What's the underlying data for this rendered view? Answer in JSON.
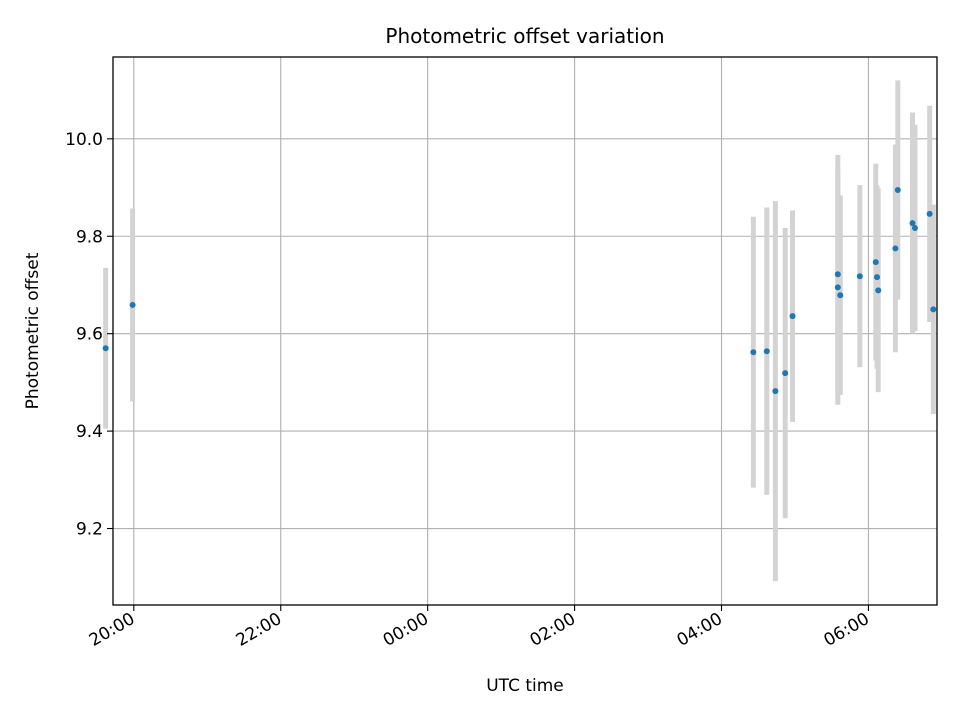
{
  "chart_data": {
    "type": "scatter",
    "title": "Photometric offset variation",
    "xlabel": "UTC time",
    "ylabel": "Photometric offset",
    "x_axis_type": "time",
    "x_reference_date": "",
    "xlim": [
      "19:43",
      "06:56"
    ],
    "ylim": [
      9.043,
      10.168
    ],
    "x_ticks": [
      "20:00",
      "22:00",
      "00:00",
      "02:00",
      "04:00",
      "06:00"
    ],
    "y_ticks": [
      9.2,
      9.4,
      9.6,
      9.8,
      10.0
    ],
    "y_tick_labels": [
      "9.2",
      "9.4",
      "9.6",
      "9.8",
      "10.0"
    ],
    "grid": true,
    "tick_label_rotation": "slanted",
    "point_color": "#1f77b4",
    "errorbar_color": "#d3d3d3",
    "series": [
      {
        "x": [
          "19:37",
          "19:59",
          "04:26",
          "04:37",
          "04:44",
          "04:52",
          "04:58",
          "05:35",
          "05:35",
          "05:37",
          "05:53",
          "06:06",
          "06:07",
          "06:08",
          "06:22",
          "06:24",
          "06:36",
          "06:38",
          "06:50",
          "06:53"
        ],
        "y": [
          9.57,
          9.659,
          9.562,
          9.564,
          9.482,
          9.519,
          9.636,
          9.722,
          9.695,
          9.679,
          9.718,
          9.747,
          9.716,
          9.689,
          9.775,
          9.895,
          9.827,
          9.817,
          9.846,
          9.65
        ],
        "yerr": [
          0.165,
          0.198,
          0.278,
          0.295,
          0.39,
          0.298,
          0.217,
          0.245,
          0.241,
          0.205,
          0.187,
          0.202,
          0.188,
          0.209,
          0.213,
          0.225,
          0.227,
          0.212,
          0.222,
          0.215
        ]
      }
    ]
  }
}
